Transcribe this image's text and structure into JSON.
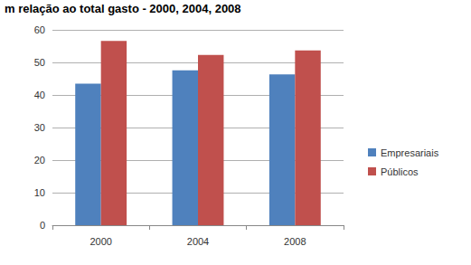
{
  "chart_data": {
    "type": "bar",
    "title": "m relação ao total gasto - 2000, 2004, 2008",
    "categories": [
      "2000",
      "2004",
      "2008"
    ],
    "series": [
      {
        "name": "Empresariais",
        "color": "#4f81bd",
        "values": [
          43.5,
          47.6,
          46.3
        ]
      },
      {
        "name": "Públicos",
        "color": "#c0504d",
        "values": [
          56.6,
          52.3,
          53.7
        ]
      }
    ],
    "ylim": [
      0,
      60
    ],
    "yticks": [
      0,
      10,
      20,
      30,
      40,
      50,
      60
    ],
    "grid": true,
    "legend": "right"
  }
}
